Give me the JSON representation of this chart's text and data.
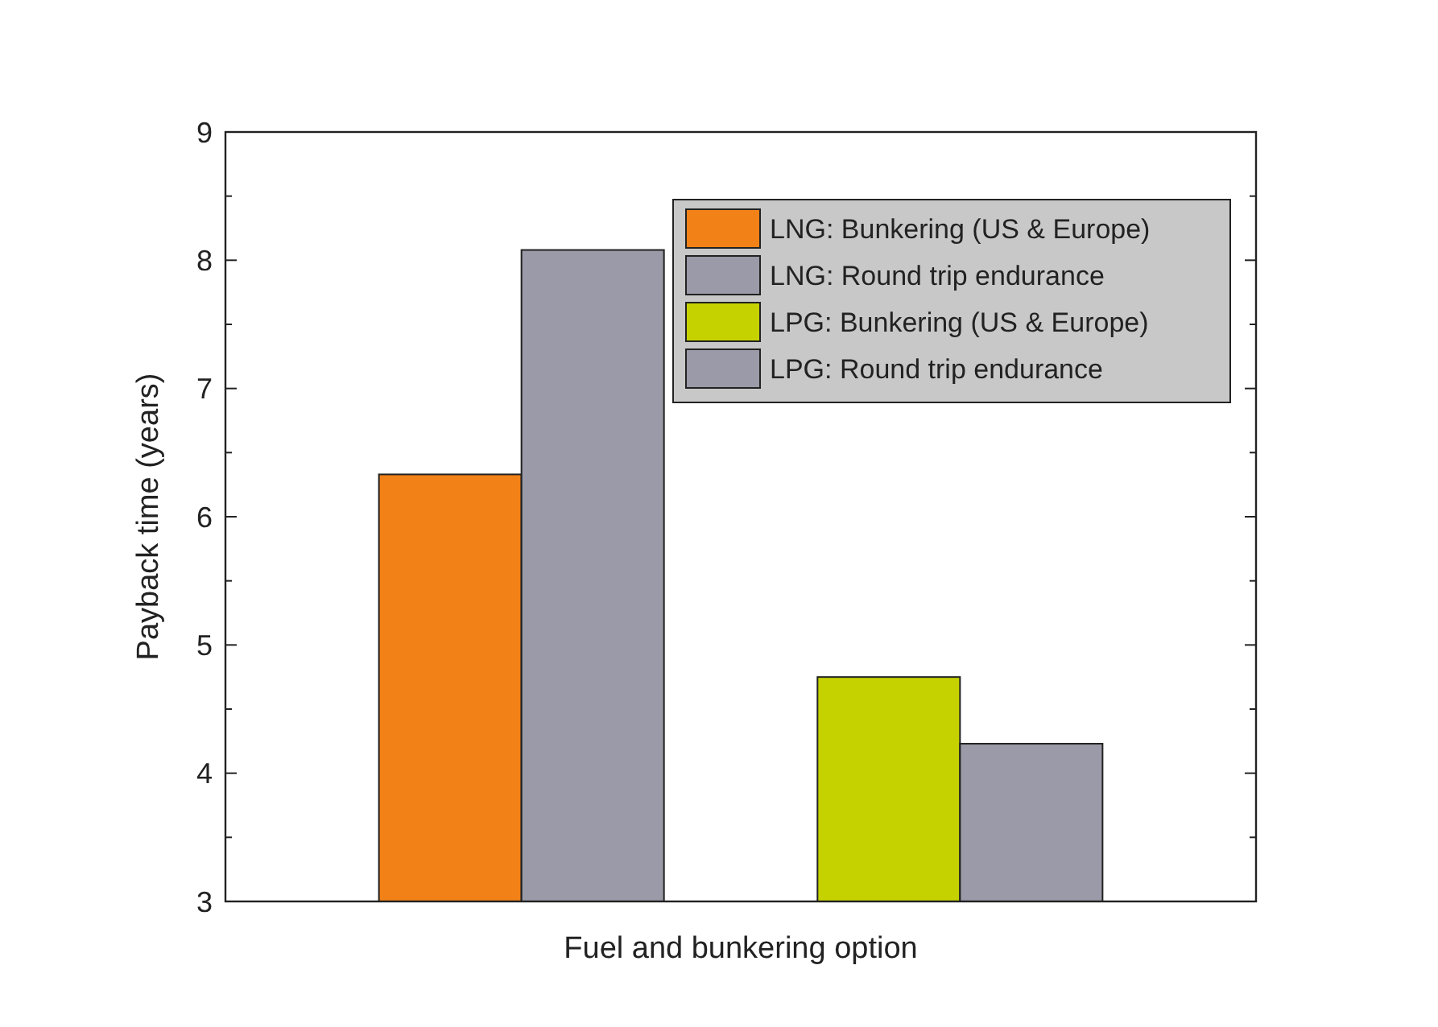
{
  "chart_data": {
    "type": "bar",
    "xlabel": "Fuel and bunkering option",
    "ylabel": "Payback time (years)",
    "categories": [
      null,
      null,
      null,
      null
    ],
    "stacked": true,
    "series": [
      {
        "name": "LNG: Bunkering (US & Europe)",
        "color": "#f28117",
        "values": [
          6.33,
          null,
          null,
          null
        ]
      },
      {
        "name": "LNG: Round trip endurance",
        "color": "#9a9aa8",
        "values": [
          null,
          8.08,
          null,
          null
        ]
      },
      {
        "name": "LPG: Bunkering (US & Europe)",
        "color": "#c6d200",
        "values": [
          null,
          null,
          4.75,
          null
        ]
      },
      {
        "name": "LPG: Round trip endurance",
        "color": "#9a9aa8",
        "values": [
          null,
          null,
          null,
          4.23
        ]
      }
    ],
    "ylim": [
      3,
      9
    ],
    "yticks": [
      3,
      {
        "value": 3.5,
        "label": null
      },
      4,
      {
        "value": 4.5,
        "label": null
      },
      5,
      {
        "value": 5.5,
        "label": null
      },
      6,
      {
        "value": 6.5,
        "label": null
      },
      7,
      {
        "value": 7.5,
        "label": null
      },
      8,
      {
        "value": 8.5,
        "label": null
      },
      9
    ],
    "legend": "top right",
    "grid": false
  }
}
